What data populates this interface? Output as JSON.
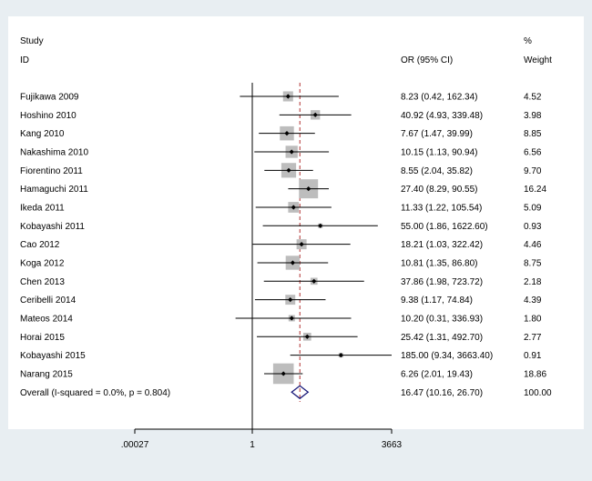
{
  "chart_data": {
    "type": "forest",
    "headers": {
      "study_line1": "Study",
      "study_line2": "ID",
      "or_label": "OR (95% CI)",
      "weight_line1": "%",
      "weight_line2": "Weight"
    },
    "axis": {
      "scale": "log",
      "ticks": [
        {
          "value": 0.00027,
          "label": ".00027"
        },
        {
          "value": 1,
          "label": "1"
        },
        {
          "value": 3663,
          "label": "3663"
        }
      ],
      "null_value": 1,
      "overall_value": 16.47
    },
    "studies": [
      {
        "name": "Fujikawa 2009",
        "or": 8.23,
        "lo": 0.42,
        "hi": 162.34,
        "ci_text": "8.23 (0.42, 162.34)",
        "weight": 4.52,
        "weight_text": "4.52"
      },
      {
        "name": "Hoshino 2010",
        "or": 40.92,
        "lo": 4.93,
        "hi": 339.48,
        "ci_text": "40.92 (4.93, 339.48)",
        "weight": 3.98,
        "weight_text": "3.98"
      },
      {
        "name": "Kang 2010",
        "or": 7.67,
        "lo": 1.47,
        "hi": 39.99,
        "ci_text": "7.67 (1.47, 39.99)",
        "weight": 8.85,
        "weight_text": "8.85"
      },
      {
        "name": "Nakashima 2010",
        "or": 10.15,
        "lo": 1.13,
        "hi": 90.94,
        "ci_text": "10.15 (1.13, 90.94)",
        "weight": 6.56,
        "weight_text": "6.56"
      },
      {
        "name": "Fiorentino 2011",
        "or": 8.55,
        "lo": 2.04,
        "hi": 35.82,
        "ci_text": "8.55 (2.04, 35.82)",
        "weight": 9.7,
        "weight_text": "9.70"
      },
      {
        "name": "Hamaguchi 2011",
        "or": 27.4,
        "lo": 8.29,
        "hi": 90.55,
        "ci_text": "27.40 (8.29, 90.55)",
        "weight": 16.24,
        "weight_text": "16.24"
      },
      {
        "name": "Ikeda 2011",
        "or": 11.33,
        "lo": 1.22,
        "hi": 105.54,
        "ci_text": "11.33 (1.22, 105.54)",
        "weight": 5.09,
        "weight_text": "5.09"
      },
      {
        "name": "Kobayashi 2011",
        "or": 55.0,
        "lo": 1.86,
        "hi": 1622.6,
        "ci_text": "55.00 (1.86, 1622.60)",
        "weight": 0.93,
        "weight_text": "0.93"
      },
      {
        "name": "Cao 2012",
        "or": 18.21,
        "lo": 1.03,
        "hi": 322.42,
        "ci_text": "18.21 (1.03, 322.42)",
        "weight": 4.46,
        "weight_text": "4.46"
      },
      {
        "name": "Koga 2012",
        "or": 10.81,
        "lo": 1.35,
        "hi": 86.8,
        "ci_text": "10.81 (1.35, 86.80)",
        "weight": 8.75,
        "weight_text": "8.75"
      },
      {
        "name": "Chen 2013",
        "or": 37.86,
        "lo": 1.98,
        "hi": 723.72,
        "ci_text": "37.86 (1.98, 723.72)",
        "weight": 2.18,
        "weight_text": "2.18"
      },
      {
        "name": "Ceribelli 2014",
        "or": 9.38,
        "lo": 1.17,
        "hi": 74.84,
        "ci_text": "9.38 (1.17, 74.84)",
        "weight": 4.39,
        "weight_text": "4.39"
      },
      {
        "name": "Mateos 2014",
        "or": 10.2,
        "lo": 0.31,
        "hi": 336.93,
        "ci_text": "10.20 (0.31, 336.93)",
        "weight": 1.8,
        "weight_text": "1.80"
      },
      {
        "name": "Horai 2015",
        "or": 25.42,
        "lo": 1.31,
        "hi": 492.7,
        "ci_text": "25.42 (1.31, 492.70)",
        "weight": 2.77,
        "weight_text": "2.77"
      },
      {
        "name": "Kobayashi 2015",
        "or": 185.0,
        "lo": 9.34,
        "hi": 3663.4,
        "ci_text": "185.00 (9.34, 3663.40)",
        "weight": 0.91,
        "weight_text": "0.91"
      },
      {
        "name": "Narang 2015",
        "or": 6.26,
        "lo": 2.01,
        "hi": 19.43,
        "ci_text": "6.26 (2.01, 19.43)",
        "weight": 18.86,
        "weight_text": "18.86"
      }
    ],
    "overall": {
      "label": "Overall  (I-squared = 0.0%, p = 0.804)",
      "or": 16.47,
      "lo": 10.16,
      "hi": 26.7,
      "ci_text": "16.47 (10.16, 26.70)",
      "weight_text": "100.00"
    },
    "colors": {
      "background": "#e8eef2",
      "plot_area": "#ffffff",
      "box": "#bdbdbd",
      "line": "#000000",
      "overall_line": "#b03030",
      "diamond": "#1a1a7a"
    }
  }
}
